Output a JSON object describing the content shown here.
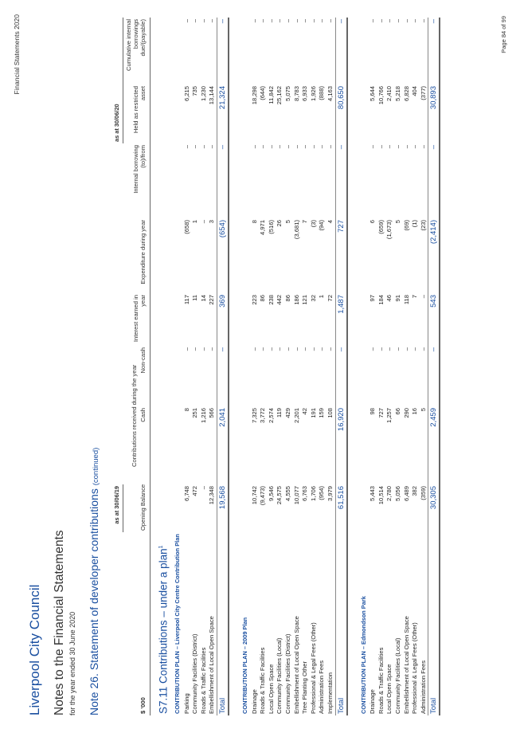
{
  "header": {
    "title": "Financial Statements 2020",
    "page": "Page 84 of 99"
  },
  "org": "Liverpool City Council",
  "doc_title": "Notes to the Financial Statements",
  "period": "for the year ended 30 June 2020",
  "note": {
    "title": "Note 26. Statement of developer contributions",
    "suffix": "(continued)"
  },
  "table": {
    "group_left": "as at 30/06/19",
    "group_right": "as at 30/06/20",
    "contrib_group": "Contributions received during the year",
    "unit": "$ '000",
    "headers": [
      "Opening Balance",
      "Cash",
      "Non-cash",
      "Interest earned in year",
      "Expenditure during year",
      "Internal borrowing (to)/from",
      "Held as restricted asset",
      "Cumulative internal borrowings due/(payable)"
    ],
    "section": "S7.11 Contributions – under a plan",
    "section_sup": "1",
    "plans": [
      {
        "title": "CONTRIBUTION PLAN – Liverpool City Centre Contribution Plan",
        "rows": [
          [
            "Parking",
            "6,748",
            "8",
            "–",
            "117",
            "(658)",
            "–",
            "6,215",
            "–"
          ],
          [
            "Community Facilities (District)",
            "472",
            "251",
            "–",
            "11",
            "1",
            "–",
            "735",
            "–"
          ],
          [
            "Roads & Traffic Facilities",
            "–",
            "1,216",
            "–",
            "14",
            "–",
            "–",
            "1,230",
            "–"
          ],
          [
            "Embellishment of Local Open Space",
            "12,348",
            "566",
            "–",
            "227",
            "3",
            "–",
            "13,144",
            "–"
          ]
        ],
        "total": [
          "Total",
          "19,568",
          "2,041",
          "–",
          "369",
          "(654)",
          "–",
          "21,324",
          "–"
        ]
      },
      {
        "title": "CONTRIBUTION PLAN – 2009 Plan",
        "rows": [
          [
            "Drainage",
            "10,742",
            "7,325",
            "–",
            "223",
            "8",
            "–",
            "18,298",
            "–"
          ],
          [
            "Roads & Traffic Facilities",
            "(9,473)",
            "3,772",
            "–",
            "86",
            "4,971",
            "–",
            "(644)",
            "–"
          ],
          [
            "Local Open Space",
            "9,546",
            "2,574",
            "–",
            "238",
            "(516)",
            "–",
            "11,842",
            "–"
          ],
          [
            "Community Facilities (Local)",
            "24,575",
            "119",
            "–",
            "442",
            "26",
            "–",
            "25,162",
            "–"
          ],
          [
            "Community Facilities (District)",
            "4,555",
            "429",
            "–",
            "86",
            "5",
            "–",
            "5,075",
            "–"
          ],
          [
            "Embellishment of Local Open Space",
            "10,077",
            "2,201",
            "–",
            "186",
            "(3,681)",
            "–",
            "8,783",
            "–"
          ],
          [
            "Tree Planting Other",
            "6,763",
            "42",
            "–",
            "121",
            "7",
            "–",
            "6,933",
            "–"
          ],
          [
            "Professional & Legal Fees (Other)",
            "1,706",
            "191",
            "–",
            "32",
            "(3)",
            "–",
            "1,926",
            "–"
          ],
          [
            "Administration Fees",
            "(954)",
            "159",
            "–",
            "1",
            "(94)",
            "–",
            "(888)",
            "–"
          ],
          [
            "Implementation",
            "3,979",
            "108",
            "–",
            "72",
            "4",
            "–",
            "4,163",
            "–"
          ]
        ],
        "total": [
          "Total",
          "61,516",
          "16,920",
          "–",
          "1,487",
          "727",
          "–",
          "80,650",
          "–"
        ]
      },
      {
        "title": "CONTRIBUTION PLAN – Edmondson Park",
        "rows": [
          [
            "Drainage",
            "5,443",
            "98",
            "–",
            "97",
            "6",
            "–",
            "5,644",
            "–"
          ],
          [
            "Roads & Traffic Facilities",
            "10,514",
            "727",
            "–",
            "184",
            "(659)",
            "–",
            "10,766",
            "–"
          ],
          [
            "Local Open Space",
            "2,780",
            "1,257",
            "–",
            "46",
            "(1,673)",
            "–",
            "2,410",
            "–"
          ],
          [
            "Community Facilities (Local)",
            "5,056",
            "66",
            "–",
            "91",
            "5",
            "–",
            "5,218",
            "–"
          ],
          [
            "Embellishment of Local Open Space",
            "6,489",
            "290",
            "–",
            "118",
            "(69)",
            "–",
            "6,828",
            "–"
          ],
          [
            "Professional & Legal Fees (Other)",
            "382",
            "16",
            "–",
            "7",
            "(1)",
            "–",
            "404",
            "–"
          ],
          [
            "Administration Fees",
            "(359)",
            "5",
            "–",
            "–",
            "(23)",
            "–",
            "(377)",
            "–"
          ]
        ],
        "total": [
          "Total",
          "30,305",
          "2,459",
          "–",
          "543",
          "(2,414)",
          "–",
          "30,893",
          "–"
        ]
      }
    ]
  }
}
